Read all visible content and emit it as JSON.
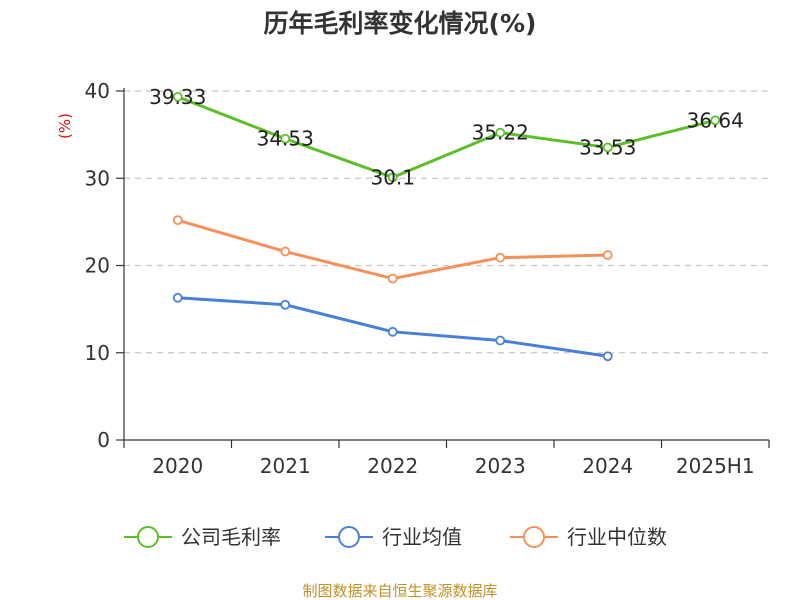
{
  "chart_data": {
    "type": "line",
    "title": "历年毛利率变化情况(%)",
    "ylabel": "(%)",
    "xlabel": "",
    "ylim": [
      0,
      40
    ],
    "yticks": [
      0,
      10,
      20,
      30,
      40
    ],
    "grid": true,
    "categories": [
      "2020",
      "2021",
      "2022",
      "2023",
      "2024",
      "2025H1"
    ],
    "series": [
      {
        "name": "公司毛利率",
        "color": "#5cbf2a",
        "values": [
          39.33,
          34.53,
          30.1,
          35.22,
          33.53,
          36.64
        ],
        "labels": [
          "39.33",
          "34.53",
          "30.1",
          "35.22",
          "33.53",
          "36.64"
        ]
      },
      {
        "name": "行业均值",
        "color": "#4a7fd6",
        "values": [
          16.3,
          15.5,
          12.4,
          11.4,
          9.6,
          null
        ]
      },
      {
        "name": "行业中位数",
        "color": "#f5905a",
        "values": [
          25.2,
          21.6,
          18.5,
          20.9,
          21.2,
          null
        ]
      }
    ],
    "legend_position": "bottom",
    "source": "制图数据来自恒生聚源数据库"
  }
}
